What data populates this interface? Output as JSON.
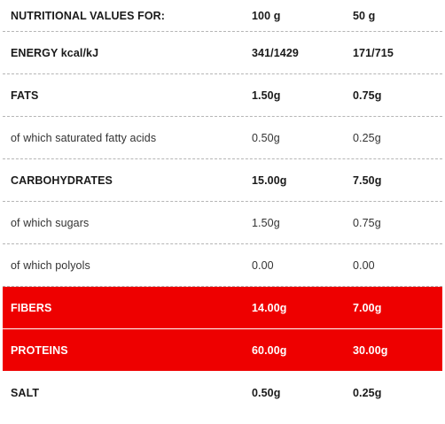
{
  "header": {
    "label": "NUTRITIONAL VALUES FOR:",
    "col_100": "100 g",
    "col_50": "50 g"
  },
  "rows": [
    {
      "name": "ENERGY kcal/kJ",
      "v100": "341/1429",
      "v50": "171/715"
    },
    {
      "name": "FATS",
      "v100": "1.50g",
      "v50": "0.75g"
    },
    {
      "name": "of which saturated fatty acids",
      "v100": "0.50g",
      "v50": "0.25g"
    },
    {
      "name": "CARBOHYDRATES",
      "v100": "15.00g",
      "v50": "7.50g"
    },
    {
      "name": "of which sugars",
      "v100": "1.50g",
      "v50": "0.75g"
    },
    {
      "name": "of which polyols",
      "v100": "0.00",
      "v50": "0.00"
    },
    {
      "name": "FIBERS",
      "v100": "14.00g",
      "v50": "7.00g"
    },
    {
      "name": "PROTEINS",
      "v100": "60.00g",
      "v50": "30.00g"
    },
    {
      "name": "SALT",
      "v100": "0.50g",
      "v50": "0.25g"
    }
  ],
  "colors": {
    "highlight_bg": "#ee0000",
    "highlight_text": "#ffffff",
    "divider": "#b5b5b5"
  }
}
